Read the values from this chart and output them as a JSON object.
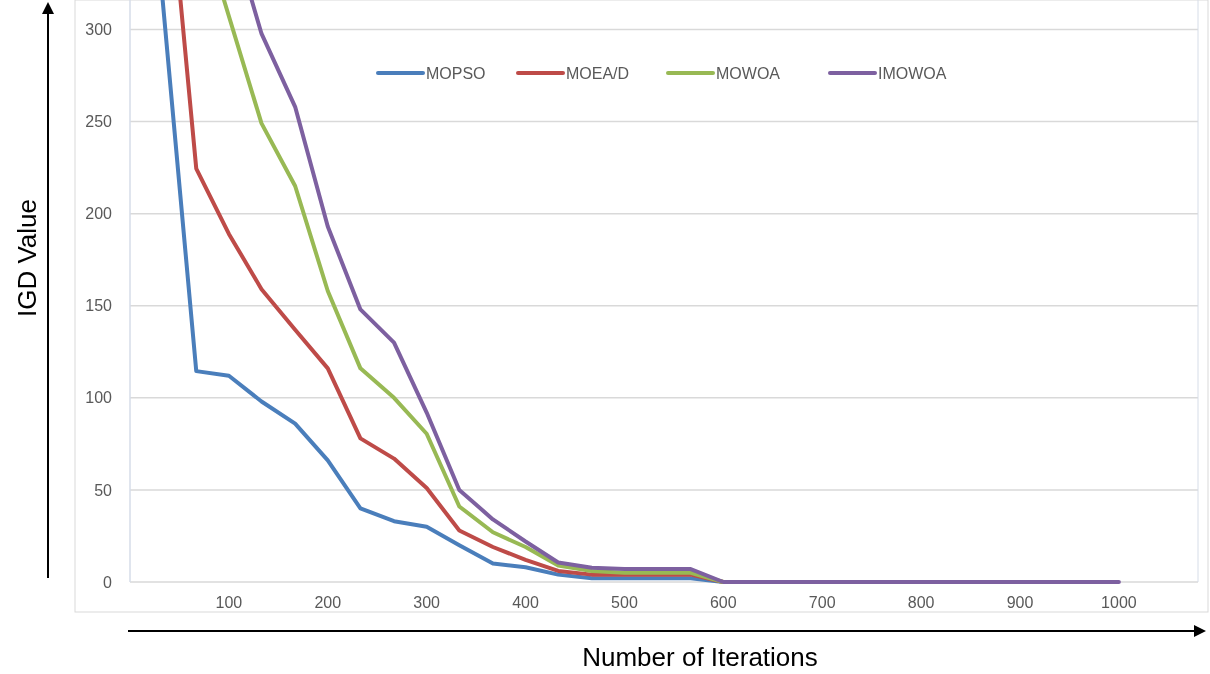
{
  "chart_data": {
    "type": "line",
    "xlabel": "Number of Iterations",
    "ylabel": "IGD Value",
    "xlim": [
      0,
      1080
    ],
    "xticks": [
      100,
      200,
      300,
      400,
      500,
      600,
      700,
      800,
      900,
      1000
    ],
    "ylim": [
      0,
      316
    ],
    "yticks": [
      0,
      50,
      100,
      150,
      200,
      250,
      300
    ],
    "grid": "y",
    "legend": "top",
    "line_style": "solid",
    "marker": "none",
    "series": [
      {
        "name": "MOPSO",
        "color": "#4a7ebb",
        "x": [
          33,
          67,
          100,
          133,
          167,
          200,
          233,
          267,
          300,
          333,
          367,
          400,
          433,
          467,
          500,
          533,
          567,
          600
        ],
        "values": [
          316,
          114.5,
          112,
          98,
          86,
          66,
          40,
          33,
          30,
          20,
          10,
          8,
          4,
          2,
          2,
          2,
          2,
          0
        ]
      },
      {
        "name": "MOEA/D",
        "color": "#be4b48",
        "x": [
          51,
          67,
          100,
          133,
          167,
          200,
          233,
          267,
          300,
          333,
          367,
          400,
          433,
          467,
          500,
          533,
          567,
          600
        ],
        "values": [
          316,
          224.5,
          189,
          159,
          137,
          116,
          78,
          67,
          51,
          28,
          19,
          12,
          6,
          4,
          4,
          4,
          4,
          0
        ]
      },
      {
        "name": "MOWOA",
        "color": "#98b954",
        "x": [
          95,
          133,
          167,
          200,
          233,
          267,
          300,
          333,
          367,
          400,
          433,
          467,
          500,
          533,
          567,
          600
        ],
        "values": [
          316,
          249,
          215,
          158,
          116,
          100,
          80.5,
          41,
          27,
          19,
          9,
          6,
          5,
          5,
          5,
          0
        ]
      },
      {
        "name": "IMOWOA",
        "color": "#7d60a0",
        "x": [
          123,
          133,
          167,
          200,
          233,
          267,
          300,
          333,
          367,
          400,
          433,
          467,
          500,
          533,
          567,
          600,
          633,
          667,
          700,
          733,
          767,
          800,
          833,
          867,
          900,
          933,
          967,
          1000
        ],
        "values": [
          316,
          297.7,
          258,
          193,
          148,
          130,
          92,
          50,
          34,
          22,
          10.6,
          7.7,
          7,
          7,
          7,
          0,
          0,
          0,
          0,
          0,
          0,
          0,
          0,
          0,
          0,
          0,
          0,
          0
        ]
      }
    ]
  }
}
